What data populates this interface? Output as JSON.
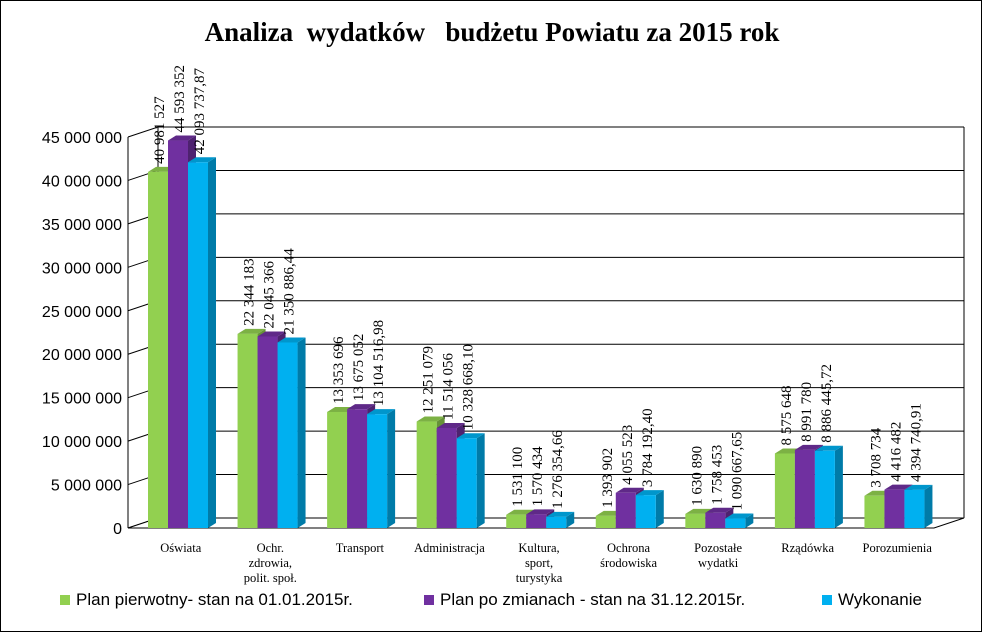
{
  "chart_data": {
    "type": "bar",
    "title": "Analiza  wydatków   budżetu Powiatu za 2015 rok",
    "categories": [
      [
        "Oświata"
      ],
      [
        "Ochr.",
        "zdrowia,",
        "polit. społ."
      ],
      [
        "Transport"
      ],
      [
        "Administracja"
      ],
      [
        "Kultura,",
        "sport,",
        "turystyka"
      ],
      [
        "Ochrona",
        "środowiska"
      ],
      [
        "Pozostałe",
        "wydatki"
      ],
      [
        "Rządówka"
      ],
      [
        "Porozumienia"
      ]
    ],
    "series": [
      {
        "name": "Plan pierwotny- stan na 01.01.2015r.",
        "color": "#92d050",
        "values": [
          40981527,
          22344183,
          13353696,
          12251079,
          1531100,
          1393902,
          1630890,
          8575648,
          3708734
        ],
        "labels": [
          "40 981 527",
          "22 344 183",
          "13 353 696",
          "12 251 079",
          "1 531 100",
          "1 393 902",
          "1 630 890",
          "8 575  648",
          "3 708 734"
        ]
      },
      {
        "name": "Plan po zmianach - stan na 31.12.2015r.",
        "color": "#7030a0",
        "values": [
          44593352,
          22045366,
          13675052,
          11514056,
          1570434,
          4055523,
          1758453,
          8991780,
          4416482
        ],
        "labels": [
          "44 593 352",
          "22 045  366",
          "13 675 052",
          "11 514 056",
          "1 570 434",
          "4 055  523",
          "1 758 453",
          "8 991  780",
          "4 416 482"
        ]
      },
      {
        "name": "Wykonanie",
        "color": "#00b0f0",
        "values": [
          42093737.87,
          21350886.44,
          13104516.98,
          10328668.1,
          1276354.66,
          3784192.4,
          1090667.65,
          8886445.72,
          4394740.91
        ],
        "labels": [
          "42 093 737,87",
          "21 350 886,44",
          "13 104 516,98",
          "10 328 668,10",
          "1 276 354,66",
          "3 784 192,40",
          "1 090 667,65",
          "8 886 445,72",
          "4 394 740,91"
        ]
      }
    ],
    "ylim": [
      0,
      45000000
    ],
    "yticks": [
      0,
      5000000,
      10000000,
      15000000,
      20000000,
      25000000,
      30000000,
      35000000,
      40000000,
      45000000
    ],
    "ytick_labels": [
      "0",
      "5 000 000",
      "10 000 000",
      "15 000 000",
      "20 000 000",
      "25 000 000",
      "30 000 000",
      "35 000 000",
      "40 000 000",
      "45 000 000"
    ],
    "grid": true,
    "legend_position": "bottom"
  }
}
